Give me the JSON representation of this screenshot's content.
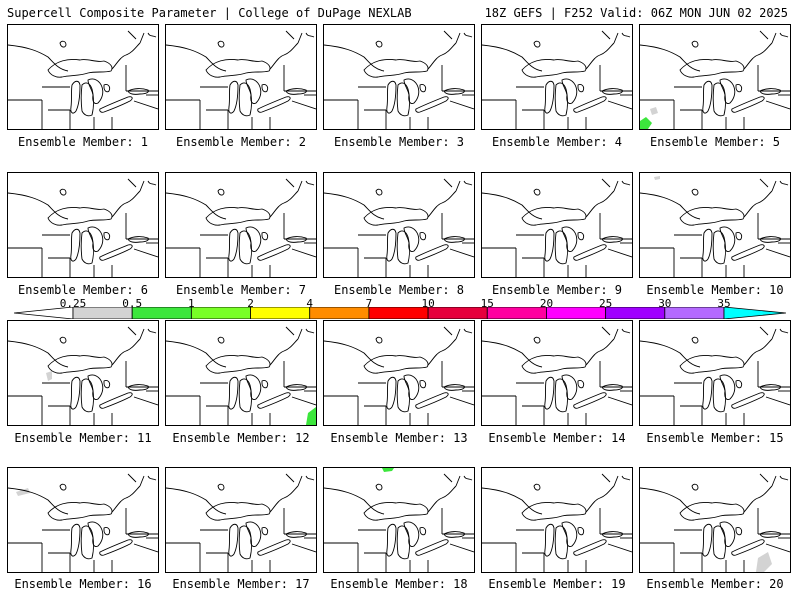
{
  "header": {
    "left": "Supercell Composite Parameter | College of DuPage NEXLAB",
    "right": "18Z GEFS | F252 Valid: 06Z MON JUN 02 2025"
  },
  "legend": {
    "levels": [
      "0.25",
      "0.5",
      "1",
      "2",
      "4",
      "7",
      "10",
      "15",
      "20",
      "25",
      "30",
      "35"
    ],
    "colors": [
      "#d3d3d3",
      "#3ce63c",
      "#78ff26",
      "#ffff00",
      "#ff8c00",
      "#ff0000",
      "#e6003c",
      "#ff00a0",
      "#ff00ff",
      "#a000ff",
      "#b469ff",
      "#00ffff"
    ]
  },
  "panels": [
    {
      "label": "Ensemble Member: 1"
    },
    {
      "label": "Ensemble Member: 2"
    },
    {
      "label": "Ensemble Member: 3"
    },
    {
      "label": "Ensemble Member: 4"
    },
    {
      "label": "Ensemble Member: 5"
    },
    {
      "label": "Ensemble Member: 6"
    },
    {
      "label": "Ensemble Member: 7"
    },
    {
      "label": "Ensemble Member: 8"
    },
    {
      "label": "Ensemble Member: 9"
    },
    {
      "label": "Ensemble Member: 10"
    },
    {
      "label": "Ensemble Member: 11"
    },
    {
      "label": "Ensemble Member: 12"
    },
    {
      "label": "Ensemble Member: 13"
    },
    {
      "label": "Ensemble Member: 14"
    },
    {
      "label": "Ensemble Member: 15"
    },
    {
      "label": "Ensemble Member: 16"
    },
    {
      "label": "Ensemble Member: 17"
    },
    {
      "label": "Ensemble Member: 18"
    },
    {
      "label": "Ensemble Member: 19"
    },
    {
      "label": "Ensemble Member: 20"
    }
  ]
}
